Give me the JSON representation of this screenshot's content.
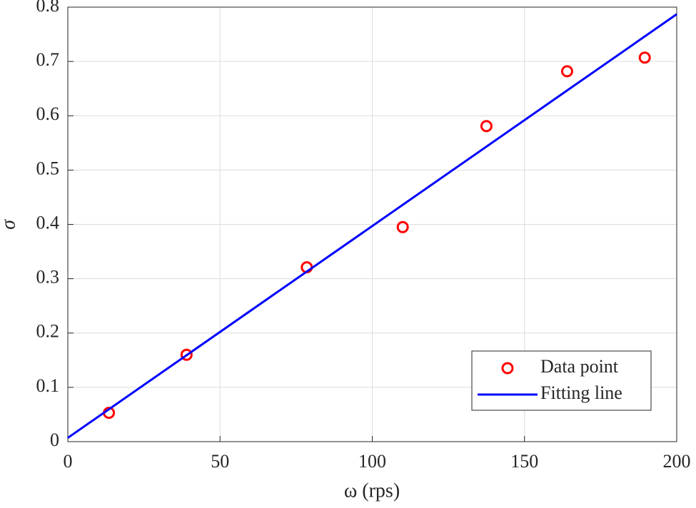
{
  "chart_data": {
    "type": "scatter",
    "x_label": "ω (rps)",
    "y_label": "σ",
    "xlim": [
      0,
      200
    ],
    "xticks": [
      0,
      50,
      100,
      150,
      200
    ],
    "ylim": [
      0,
      0.8
    ],
    "yticks": [
      0,
      0.1,
      0.2,
      0.3,
      0.4,
      0.5,
      0.6,
      0.7,
      0.8
    ],
    "grid": true,
    "legend": "lower right",
    "series": [
      {
        "name": "Data point",
        "color": "#ff0000",
        "style": "marker",
        "x": [
          13.5,
          39,
          78.5,
          110,
          137.5,
          164,
          189.5
        ],
        "values": [
          0.053,
          0.16,
          0.321,
          0.395,
          0.581,
          0.682,
          0.707
        ]
      },
      {
        "name": "Fitting line",
        "color": "#0000ff",
        "style": "line",
        "x": [
          0,
          200
        ],
        "values": [
          0.007,
          0.787
        ]
      }
    ]
  }
}
